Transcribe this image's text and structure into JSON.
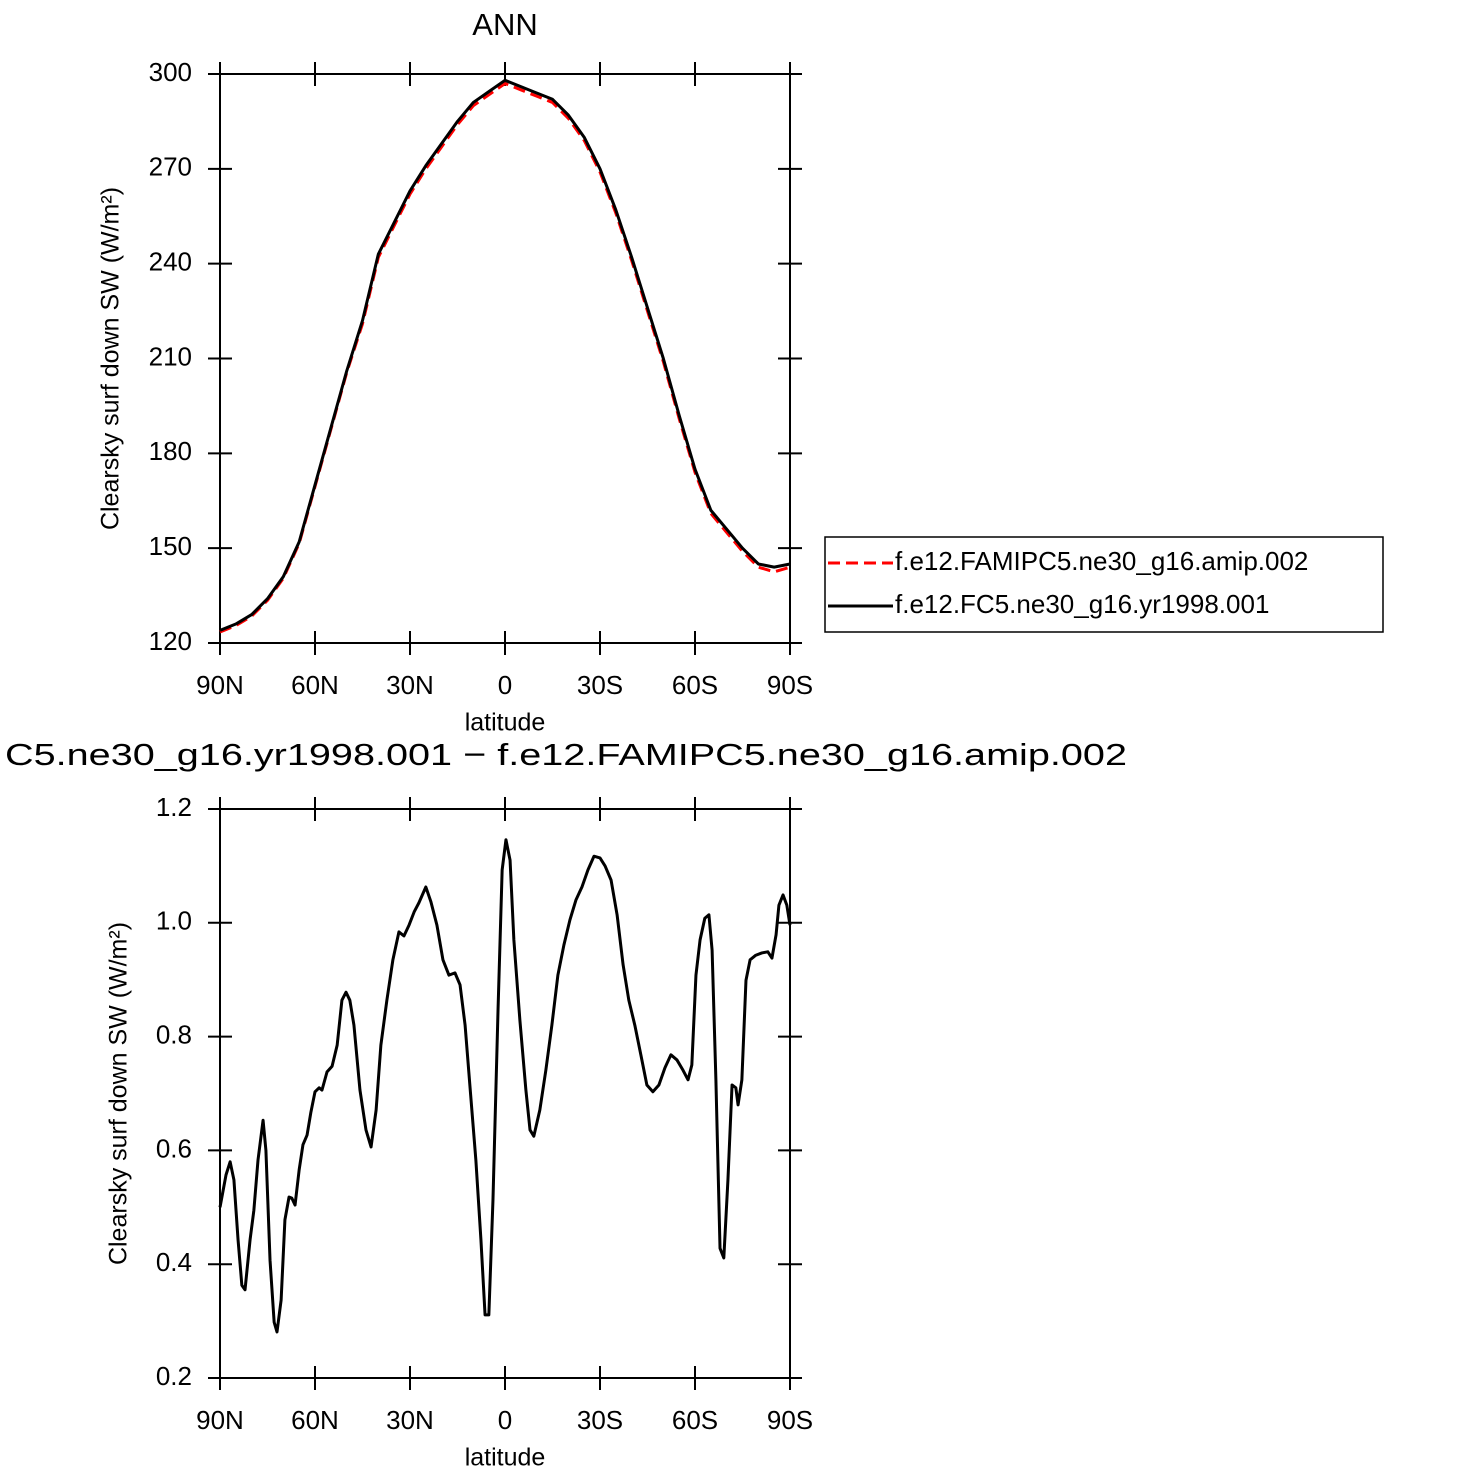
{
  "chart_data": [
    {
      "type": "line",
      "title": "ANN",
      "xlabel": "latitude",
      "ylabel": "Clearsky surf down SW (W/m²)",
      "x": [
        90,
        85,
        80,
        75,
        70,
        65,
        60,
        55,
        50,
        45,
        40,
        35,
        30,
        25,
        20,
        15,
        10,
        5,
        0,
        -5,
        -10,
        -15,
        -20,
        -25,
        -30,
        -35,
        -40,
        -45,
        -50,
        -55,
        -60,
        -65,
        -70,
        -75,
        -80,
        -85,
        -90
      ],
      "series": [
        {
          "name": "f.e12.FAMIPC5.ne30_g16.amip.002",
          "color": "#ff0000",
          "linestyle": "dashed",
          "values": [
            123.5,
            125.5,
            128.5,
            133.5,
            140.5,
            151.5,
            169.5,
            187.5,
            205.5,
            221,
            242,
            252,
            262,
            270,
            277,
            284,
            290,
            293.5,
            297,
            295,
            293,
            291,
            286,
            279,
            269,
            256,
            241,
            225,
            209,
            191,
            174,
            161,
            155,
            149,
            144,
            142.5,
            144
          ]
        },
        {
          "name": "f.e12.FC5.ne30_g16.yr1998.001",
          "color": "#000000",
          "linestyle": "solid",
          "values": [
            124,
            126,
            129,
            134,
            141,
            152,
            170,
            188,
            206,
            222,
            243,
            253,
            263,
            271,
            278,
            285,
            291,
            294.5,
            298,
            296,
            294,
            292,
            287,
            280,
            270,
            257,
            242,
            226,
            210,
            192,
            175,
            162,
            156,
            150,
            145,
            144,
            145
          ]
        }
      ],
      "xlim": [
        90,
        -90
      ],
      "xticks": [
        {
          "value": 90,
          "label": "90N"
        },
        {
          "value": 60,
          "label": "60N"
        },
        {
          "value": 30,
          "label": "30N"
        },
        0,
        {
          "value": -30,
          "label": "30S"
        },
        {
          "value": -60,
          "label": "60S"
        },
        {
          "value": -90,
          "label": "90S"
        }
      ],
      "ylim": [
        120,
        300
      ],
      "yticks": [
        120,
        150,
        180,
        210,
        240,
        270,
        300
      ],
      "legend": "outside-right"
    },
    {
      "type": "line",
      "title": "C5.ne30_g16.yr1998.001 − f.e12.FAMIPC5.ne30_g16.amip.002",
      "xlabel": "latitude",
      "ylabel": "Clearsky surf down SW (W/m²)",
      "x": [
        90,
        88.1,
        86.8,
        85.6,
        84.3,
        83.1,
        82.1,
        80.5,
        79.3,
        78,
        76.4,
        75.5,
        74.2,
        72.9,
        72,
        70.7,
        69.5,
        68.2,
        67.3,
        66.3,
        65,
        63.8,
        62.5,
        61.3,
        60,
        58.7,
        57.8,
        56.2,
        54.6,
        53,
        51.5,
        50.2,
        49,
        47.7,
        45.8,
        43.9,
        42.3,
        40.7,
        39.2,
        37.3,
        35.4,
        33.5,
        31.9,
        30.3,
        28.7,
        27.2,
        25,
        23.4,
        21.5,
        19.6,
        17.7,
        15.8,
        14.2,
        12.6,
        11.1,
        9.2,
        7.6,
        6.3,
        5.1,
        3.8,
        2.2,
        0.9,
        -0.3,
        -1.6,
        -2.8,
        -4.7,
        -6.6,
        -7.9,
        -9.1,
        -11,
        -12.9,
        -14.8,
        -16.7,
        -18.6,
        -20.5,
        -22.4,
        -24.3,
        -26.2,
        -28.1,
        -30,
        -31.6,
        -33.5,
        -35.4,
        -37.3,
        -39.1,
        -41,
        -42.9,
        -44.8,
        -46.7,
        -48.6,
        -50.5,
        -52.4,
        -54.3,
        -56.2,
        -57.8,
        -59,
        -60.3,
        -61.6,
        -63.1,
        -64.4,
        -65.4,
        -66.6,
        -67.9,
        -69.1,
        -70.4,
        -71.7,
        -72.9,
        -73.6,
        -74.8,
        -76.1,
        -77.4,
        -79.2,
        -81.1,
        -83,
        -84.3,
        -85.6,
        -86.5,
        -87.8,
        -89,
        -90
      ],
      "series": [
        {
          "color": "#000000",
          "linestyle": "solid",
          "values": [
            0.5,
            0.557,
            0.58,
            0.548,
            0.443,
            0.363,
            0.355,
            0.443,
            0.495,
            0.583,
            0.653,
            0.6,
            0.407,
            0.298,
            0.281,
            0.337,
            0.478,
            0.518,
            0.516,
            0.504,
            0.566,
            0.61,
            0.627,
            0.667,
            0.703,
            0.71,
            0.706,
            0.738,
            0.748,
            0.785,
            0.864,
            0.878,
            0.864,
            0.82,
            0.706,
            0.636,
            0.606,
            0.671,
            0.785,
            0.864,
            0.935,
            0.984,
            0.977,
            0.996,
            1.019,
            1.035,
            1.063,
            1.037,
            0.996,
            0.935,
            0.908,
            0.912,
            0.891,
            0.82,
            0.715,
            0.583,
            0.443,
            0.311,
            0.311,
            0.513,
            0.847,
            1.093,
            1.146,
            1.11,
            0.97,
            0.829,
            0.706,
            0.636,
            0.625,
            0.671,
            0.741,
            0.82,
            0.908,
            0.961,
            1.005,
            1.04,
            1.063,
            1.093,
            1.117,
            1.114,
            1.1,
            1.075,
            1.014,
            0.926,
            0.864,
            0.82,
            0.768,
            0.715,
            0.703,
            0.715,
            0.745,
            0.768,
            0.759,
            0.741,
            0.724,
            0.75,
            0.908,
            0.97,
            1.008,
            1.014,
            0.952,
            0.724,
            0.428,
            0.411,
            0.548,
            0.715,
            0.71,
            0.68,
            0.724,
            0.899,
            0.935,
            0.943,
            0.947,
            0.949,
            0.938,
            0.979,
            1.031,
            1.049,
            1.031,
            0.996
          ]
        }
      ],
      "xlim": [
        90,
        -90
      ],
      "xticks": [
        {
          "value": 90,
          "label": "90N"
        },
        {
          "value": 60,
          "label": "60N"
        },
        {
          "value": 30,
          "label": "30N"
        },
        0,
        {
          "value": -30,
          "label": "30S"
        },
        {
          "value": -60,
          "label": "60S"
        },
        {
          "value": -90,
          "label": "90S"
        }
      ],
      "ylim": [
        0.2,
        1.2
      ],
      "yticks": [
        0.2,
        0.4,
        0.6,
        0.8,
        {
          "value": 1,
          "label": "1.0"
        },
        1.2
      ]
    }
  ]
}
